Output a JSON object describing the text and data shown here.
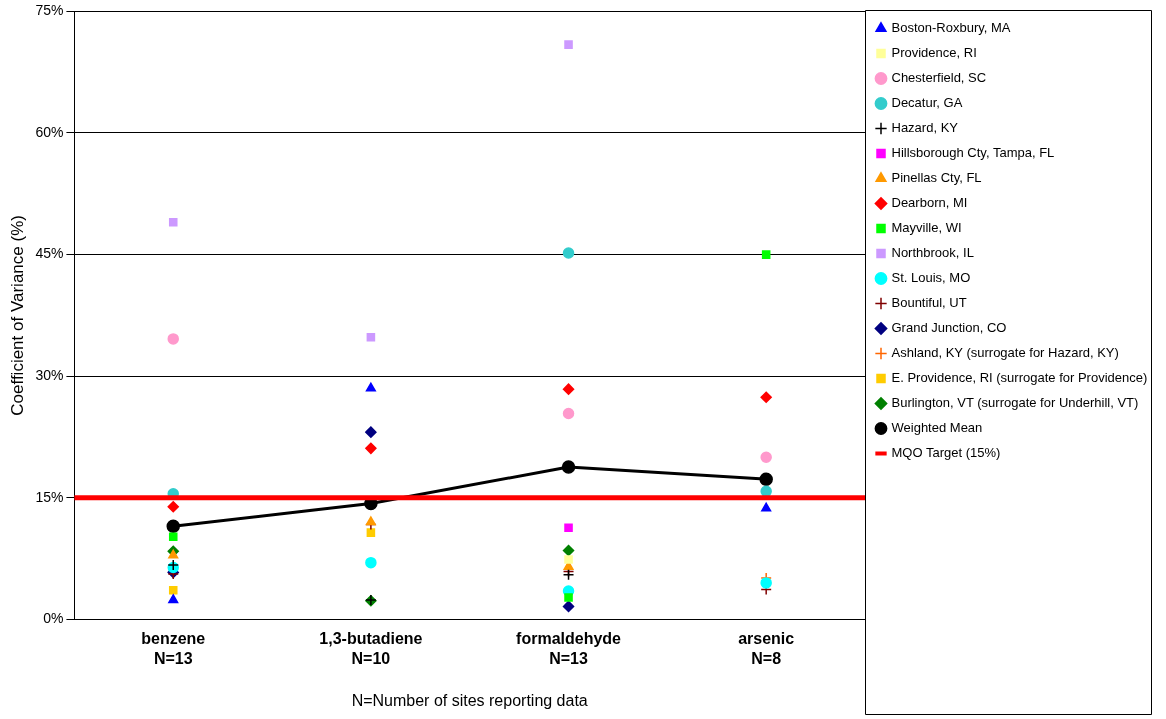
{
  "chart_data": {
    "type": "scatter",
    "xlabel": "N=Number of sites reporting data",
    "ylabel": "Coefficient of Variance (%)",
    "categories": [
      "benzene\nN=13",
      "1,3-butadiene\nN=10",
      "formaldehyde\nN=13",
      "arsenic\nN=8"
    ],
    "ylim": [
      0,
      75
    ],
    "yticks": [
      {
        "value": 0,
        "label": "0%"
      },
      {
        "value": 15,
        "label": "15%"
      },
      {
        "value": 30,
        "label": "30%"
      },
      {
        "value": 45,
        "label": "45%"
      },
      {
        "value": 60,
        "label": "60%"
      },
      {
        "value": 75,
        "label": "75%"
      }
    ],
    "grid": "y",
    "legend": "right",
    "series": [
      {
        "name": "Boston-Roxbury, MA",
        "color": "#0000ff",
        "marker": "triangle",
        "values": [
          2.4,
          28.5,
          null,
          13.7
        ]
      },
      {
        "name": "Providence, RI",
        "color": "#ffff99",
        "marker": "square",
        "values": [
          null,
          null,
          7.4,
          null
        ]
      },
      {
        "name": "Chesterfield, SC",
        "color": "#ff99cc",
        "marker": "circle",
        "values": [
          34.6,
          null,
          25.4,
          20.0
        ]
      },
      {
        "name": "Decatur, GA",
        "color": "#33cccc",
        "marker": "circle",
        "values": [
          15.5,
          null,
          45.2,
          15.8
        ]
      },
      {
        "name": "Hazard, KY",
        "color": "#000000",
        "marker": "cross",
        "values": [
          6.7,
          2.4,
          5.5,
          null
        ]
      },
      {
        "name": "Hillsborough Cty, Tampa, FL",
        "color": "#ff00ff",
        "marker": "square",
        "values": [
          null,
          null,
          11.3,
          null
        ]
      },
      {
        "name": "Pinellas Cty, FL",
        "color": "#ff9900",
        "marker": "triangle",
        "values": [
          7.9,
          12.0,
          6.5,
          null
        ]
      },
      {
        "name": "Dearborn, MI",
        "color": "#ff0000",
        "marker": "diamond",
        "values": [
          13.9,
          21.1,
          28.4,
          27.4
        ]
      },
      {
        "name": "Mayville, WI",
        "color": "#00ff00",
        "marker": "square",
        "values": [
          10.2,
          null,
          2.7,
          45.0
        ]
      },
      {
        "name": "Northbrook, IL",
        "color": "#cc99ff",
        "marker": "square",
        "values": [
          49.0,
          34.8,
          70.9,
          null
        ]
      },
      {
        "name": "St. Louis, MO",
        "color": "#00ffff",
        "marker": "circle",
        "values": [
          6.4,
          7.0,
          3.5,
          4.5
        ]
      },
      {
        "name": "Bountiful, UT",
        "color": "#800000",
        "marker": "cross",
        "values": [
          5.6,
          11.7,
          5.9,
          3.7
        ]
      },
      {
        "name": "Grand Junction, CO",
        "color": "#000080",
        "marker": "diamond",
        "values": [
          5.8,
          23.1,
          1.6,
          null
        ]
      },
      {
        "name": "Ashland, KY (surrogate for Hazard, KY)",
        "color": "#ff6600",
        "marker": "cross",
        "values": [
          null,
          null,
          null,
          5.1
        ]
      },
      {
        "name": "E. Providence, RI (surrogate for Providence)",
        "color": "#ffcc00",
        "marker": "square",
        "values": [
          3.6,
          10.7,
          null,
          null
        ]
      },
      {
        "name": "Burlington, VT (surrogate for Underhill, VT)",
        "color": "#008000",
        "marker": "diamond",
        "values": [
          8.4,
          2.3,
          8.5,
          null
        ]
      },
      {
        "name": "Weighted Mean",
        "type": "line",
        "color": "#000000",
        "marker": "circle",
        "line_style": "solid",
        "values": [
          11.5,
          14.3,
          18.8,
          17.3
        ]
      }
    ],
    "ref_lines": [
      {
        "axis": "y",
        "value": 15,
        "label": "MQO Target (15%)",
        "color": "#ff0000"
      }
    ]
  }
}
